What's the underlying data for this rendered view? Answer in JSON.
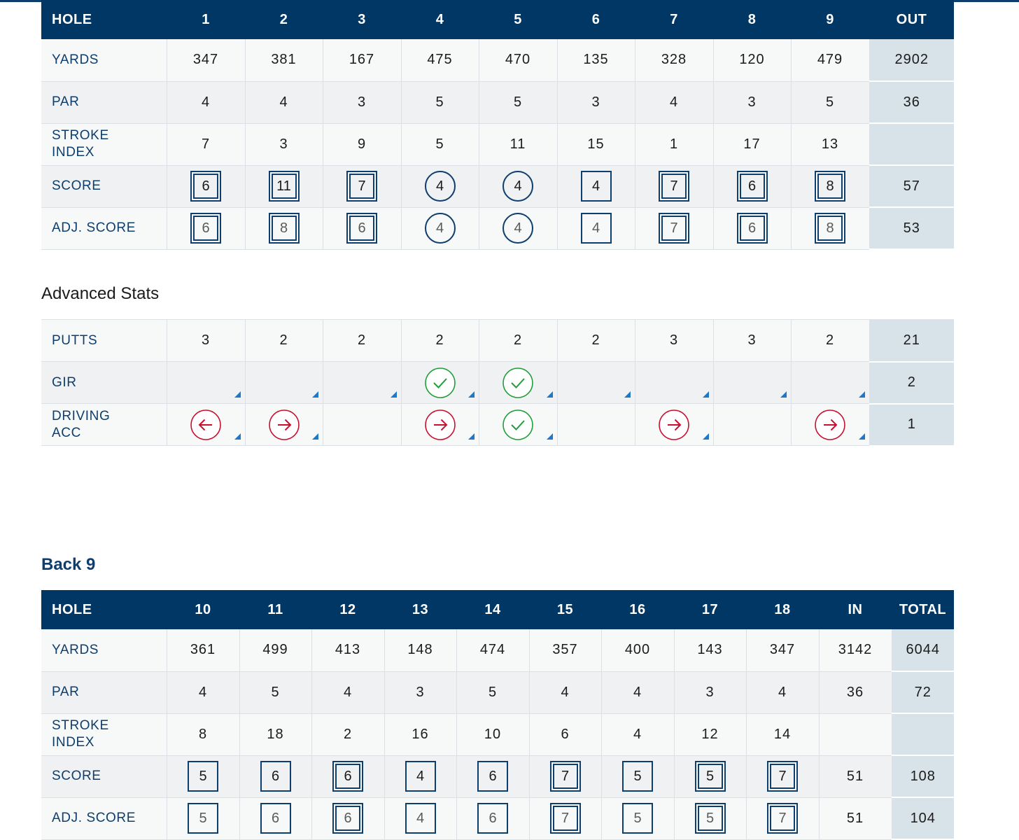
{
  "front": {
    "header": [
      "HOLE",
      "1",
      "2",
      "3",
      "4",
      "5",
      "6",
      "7",
      "8",
      "9",
      "OUT"
    ],
    "yards": {
      "label": "YARDS",
      "values": [
        "347",
        "381",
        "167",
        "475",
        "470",
        "135",
        "328",
        "120",
        "479"
      ],
      "total": "2902"
    },
    "par": {
      "label": "PAR",
      "values": [
        "4",
        "4",
        "3",
        "5",
        "5",
        "3",
        "4",
        "3",
        "5"
      ],
      "total": "36"
    },
    "stroke": {
      "label_1": "STROKE",
      "label_2": "INDEX",
      "values": [
        "7",
        "3",
        "9",
        "5",
        "11",
        "15",
        "1",
        "17",
        "13"
      ],
      "total": ""
    },
    "score": {
      "label": "SCORE",
      "values": [
        "6",
        "11",
        "7",
        "4",
        "4",
        "4",
        "7",
        "6",
        "8"
      ],
      "marks": [
        "dsq",
        "dsq",
        "dsq",
        "circ",
        "circ",
        "sq",
        "dsq",
        "dsq",
        "dsq"
      ],
      "total": "57"
    },
    "adj": {
      "label": "ADJ. SCORE",
      "values": [
        "6",
        "8",
        "6",
        "4",
        "4",
        "4",
        "7",
        "6",
        "8"
      ],
      "marks": [
        "dsq",
        "dsq",
        "dsq",
        "circ",
        "circ",
        "sq",
        "dsq",
        "dsq",
        "dsq"
      ],
      "total": "53"
    }
  },
  "advanced": {
    "title": "Advanced Stats",
    "putts": {
      "label": "PUTTS",
      "values": [
        "3",
        "2",
        "2",
        "2",
        "2",
        "2",
        "3",
        "3",
        "2"
      ],
      "total": "21"
    },
    "gir": {
      "label": "GIR",
      "icons": [
        "",
        "",
        "",
        "check-icon",
        "check-icon",
        "",
        "",
        "",
        ""
      ],
      "total": "2"
    },
    "driving": {
      "label_1": "DRIVING",
      "label_2": "ACC",
      "icons": [
        "arrow-left-icon",
        "arrow-right-icon",
        "",
        "arrow-right-icon",
        "check-icon",
        "",
        "arrow-right-icon",
        "",
        "arrow-right-icon"
      ],
      "total": "1"
    },
    "colors": {
      "miss": "#c8102e",
      "hit": "#1f9e3a",
      "flag": "#1d78c9"
    }
  },
  "back": {
    "title": "Back 9",
    "header": [
      "HOLE",
      "10",
      "11",
      "12",
      "13",
      "14",
      "15",
      "16",
      "17",
      "18",
      "IN",
      "TOTAL"
    ],
    "yards": {
      "label": "YARDS",
      "values": [
        "361",
        "499",
        "413",
        "148",
        "474",
        "357",
        "400",
        "143",
        "347"
      ],
      "in": "3142",
      "total": "6044"
    },
    "par": {
      "label": "PAR",
      "values": [
        "4",
        "5",
        "4",
        "3",
        "5",
        "4",
        "4",
        "3",
        "4"
      ],
      "in": "36",
      "total": "72"
    },
    "stroke": {
      "label_1": "STROKE",
      "label_2": "INDEX",
      "values": [
        "8",
        "18",
        "2",
        "16",
        "10",
        "6",
        "4",
        "12",
        "14"
      ],
      "in": "",
      "total": ""
    },
    "score": {
      "label": "SCORE",
      "values": [
        "5",
        "6",
        "6",
        "4",
        "6",
        "7",
        "5",
        "5",
        "7"
      ],
      "marks": [
        "sq",
        "sq",
        "dsq",
        "sq",
        "sq",
        "dsq",
        "sq",
        "dsq",
        "dsq"
      ],
      "in": "51",
      "total": "108"
    },
    "adj": {
      "label": "ADJ. SCORE",
      "values": [
        "5",
        "6",
        "6",
        "4",
        "6",
        "7",
        "5",
        "5",
        "7"
      ],
      "marks": [
        "sq",
        "sq",
        "dsq",
        "sq",
        "sq",
        "dsq",
        "sq",
        "dsq",
        "dsq"
      ],
      "in": "51",
      "total": "104"
    }
  }
}
